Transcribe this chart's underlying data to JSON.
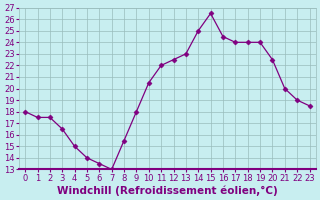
{
  "x": [
    0,
    1,
    2,
    3,
    4,
    5,
    6,
    7,
    8,
    9,
    10,
    11,
    12,
    13,
    14,
    15,
    16,
    17,
    18,
    19,
    20,
    21,
    22,
    23
  ],
  "y": [
    18,
    17.5,
    17.5,
    16.5,
    15,
    14,
    13.5,
    13,
    15.5,
    18,
    20.5,
    22,
    22.5,
    23,
    25,
    26.5,
    24.5,
    24,
    24,
    24,
    22.5,
    20,
    19,
    18.5
  ],
  "line_color": "#800080",
  "marker": "D",
  "marker_size": 2.5,
  "background_color": "#c8eef0",
  "grid_color": "#9abcbc",
  "xlabel": "Windchill (Refroidissement éolien,°C)",
  "ylim": [
    13,
    27
  ],
  "xlim": [
    -0.5,
    23.5
  ],
  "yticks": [
    13,
    14,
    15,
    16,
    17,
    18,
    19,
    20,
    21,
    22,
    23,
    24,
    25,
    26,
    27
  ],
  "xticks": [
    0,
    1,
    2,
    3,
    4,
    5,
    6,
    7,
    8,
    9,
    10,
    11,
    12,
    13,
    14,
    15,
    16,
    17,
    18,
    19,
    20,
    21,
    22,
    23
  ],
  "tick_color": "#800080",
  "label_color": "#800080",
  "font_size": 6,
  "xlabel_font_size": 7.5
}
